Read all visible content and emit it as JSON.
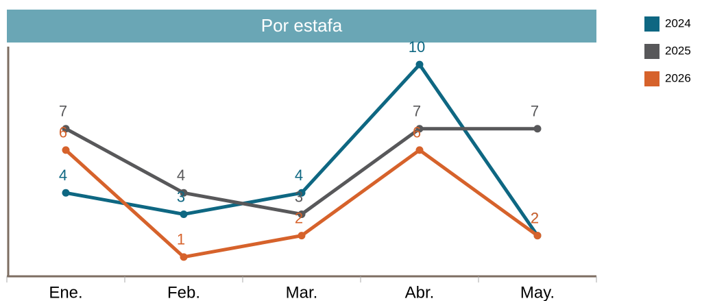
{
  "chart_data": {
    "type": "line",
    "title": "Por estafa",
    "categories": [
      "Ene.",
      "Feb.",
      "Mar.",
      "Abr.",
      "May."
    ],
    "series": [
      {
        "name": "2024",
        "color": "#0e6782",
        "values": [
          4,
          3,
          4,
          10,
          2
        ]
      },
      {
        "name": "2025",
        "color": "#58585a",
        "values": [
          7,
          4,
          3,
          7,
          7
        ]
      },
      {
        "name": "2026",
        "color": "#d6622b",
        "values": [
          6,
          1,
          2,
          6,
          2
        ]
      }
    ],
    "ylim": [
      0,
      11
    ],
    "legend": "right",
    "title_color": "#6aa6b5",
    "axis_color": "#7d6e62"
  }
}
